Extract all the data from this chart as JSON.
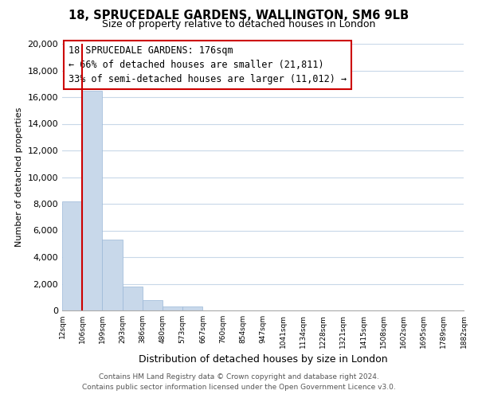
{
  "title": "18, SPRUCEDALE GARDENS, WALLINGTON, SM6 9LB",
  "subtitle": "Size of property relative to detached houses in London",
  "xlabel": "Distribution of detached houses by size in London",
  "ylabel": "Number of detached properties",
  "bar_values": [
    8200,
    16500,
    5300,
    1800,
    750,
    280,
    280,
    0,
    0,
    0,
    0,
    0,
    0,
    0,
    0,
    0,
    0,
    0,
    0,
    0
  ],
  "bar_labels": [
    "12sqm",
    "106sqm",
    "199sqm",
    "293sqm",
    "386sqm",
    "480sqm",
    "573sqm",
    "667sqm",
    "760sqm",
    "854sqm",
    "947sqm",
    "1041sqm",
    "1134sqm",
    "1228sqm",
    "1321sqm",
    "1415sqm",
    "1508sqm",
    "1602sqm",
    "1695sqm",
    "1789sqm",
    "1882sqm"
  ],
  "bar_color": "#c8d8ea",
  "bar_edge_color": "#9ab8d8",
  "property_line_x": 1,
  "property_line_color": "#cc0000",
  "annotation_line1": "18 SPRUCEDALE GARDENS: 176sqm",
  "annotation_line2": "← 66% of detached houses are smaller (21,811)",
  "annotation_line3": "33% of semi-detached houses are larger (11,012) →",
  "ylim": [
    0,
    20000
  ],
  "yticks": [
    0,
    2000,
    4000,
    6000,
    8000,
    10000,
    12000,
    14000,
    16000,
    18000,
    20000
  ],
  "footer_line1": "Contains HM Land Registry data © Crown copyright and database right 2024.",
  "footer_line2": "Contains public sector information licensed under the Open Government Licence v3.0.",
  "bg_color": "#ffffff",
  "grid_color": "#c8d8e8",
  "spine_color": "#aaaaaa"
}
